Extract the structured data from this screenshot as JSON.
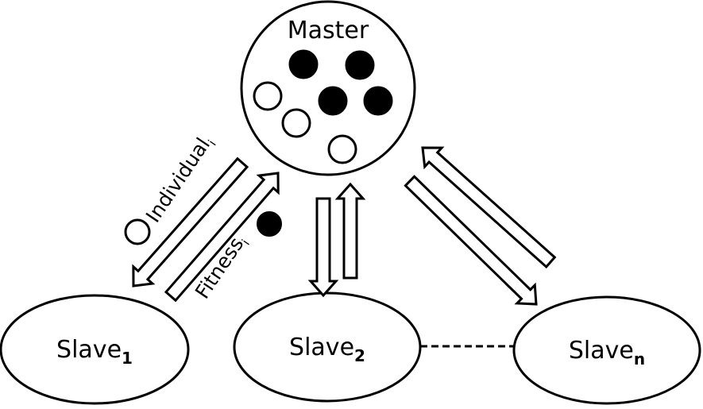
{
  "master": {
    "label": "Master",
    "population": [
      {
        "fill": "black"
      },
      {
        "fill": "black"
      },
      {
        "fill": "white"
      },
      {
        "fill": "black"
      },
      {
        "fill": "black"
      },
      {
        "fill": "white"
      },
      {
        "fill": "white"
      }
    ]
  },
  "slaves": [
    {
      "label": "Slave",
      "subscript": "1"
    },
    {
      "label": "Slave",
      "subscript": "2"
    },
    {
      "label": "Slave",
      "subscript": "n"
    }
  ],
  "flows": {
    "individual": {
      "label": "Individual",
      "subscript": "i",
      "marker": "white"
    },
    "fitness": {
      "label": "Fitness",
      "subscript": "i",
      "marker": "black"
    }
  },
  "colors": {
    "stroke": "#000000",
    "fill": "#ffffff"
  }
}
